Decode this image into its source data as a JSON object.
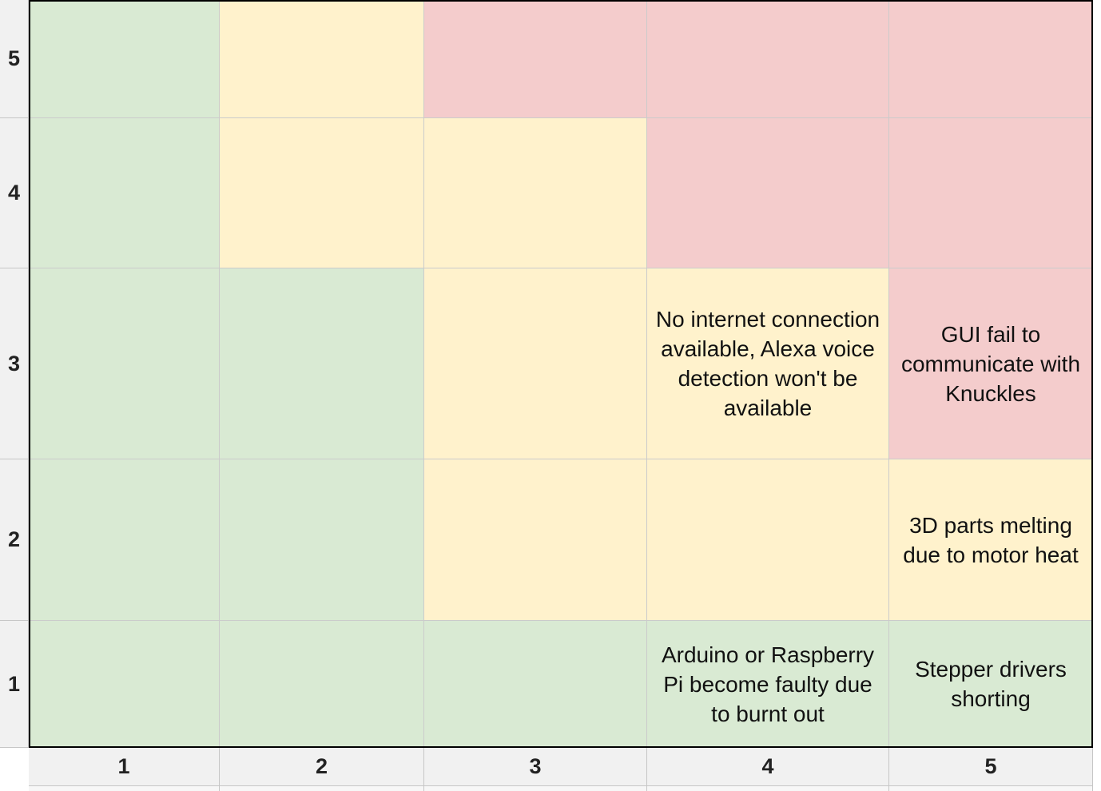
{
  "row_headers": [
    "5",
    "4",
    "3",
    "2",
    "1"
  ],
  "col_headers": [
    "1",
    "2",
    "3",
    "4",
    "5"
  ],
  "colors": {
    "green": "#d9ead3",
    "yellow": "#fff2cc",
    "red": "#f4cccc"
  },
  "grid": [
    {
      "row": "5",
      "cells": [
        {
          "color": "green",
          "text": ""
        },
        {
          "color": "yellow",
          "text": ""
        },
        {
          "color": "red",
          "text": ""
        },
        {
          "color": "red",
          "text": ""
        },
        {
          "color": "red",
          "text": ""
        }
      ]
    },
    {
      "row": "4",
      "cells": [
        {
          "color": "green",
          "text": ""
        },
        {
          "color": "yellow",
          "text": ""
        },
        {
          "color": "yellow",
          "text": ""
        },
        {
          "color": "red",
          "text": ""
        },
        {
          "color": "red",
          "text": ""
        }
      ]
    },
    {
      "row": "3",
      "cells": [
        {
          "color": "green",
          "text": ""
        },
        {
          "color": "green",
          "text": ""
        },
        {
          "color": "yellow",
          "text": ""
        },
        {
          "color": "yellow",
          "text": "No internet connection available, Alexa voice detection won't be available"
        },
        {
          "color": "red",
          "text": "GUI fail to communicate with Knuckles"
        }
      ]
    },
    {
      "row": "2",
      "cells": [
        {
          "color": "green",
          "text": ""
        },
        {
          "color": "green",
          "text": ""
        },
        {
          "color": "yellow",
          "text": ""
        },
        {
          "color": "yellow",
          "text": ""
        },
        {
          "color": "yellow",
          "text": "3D parts melting due to motor heat"
        }
      ]
    },
    {
      "row": "1",
      "cells": [
        {
          "color": "green",
          "text": ""
        },
        {
          "color": "green",
          "text": ""
        },
        {
          "color": "green",
          "text": ""
        },
        {
          "color": "green",
          "text": "Arduino or Raspberry Pi become faulty due to burnt out"
        },
        {
          "color": "green",
          "text": "Stepper drivers shorting"
        }
      ]
    }
  ]
}
